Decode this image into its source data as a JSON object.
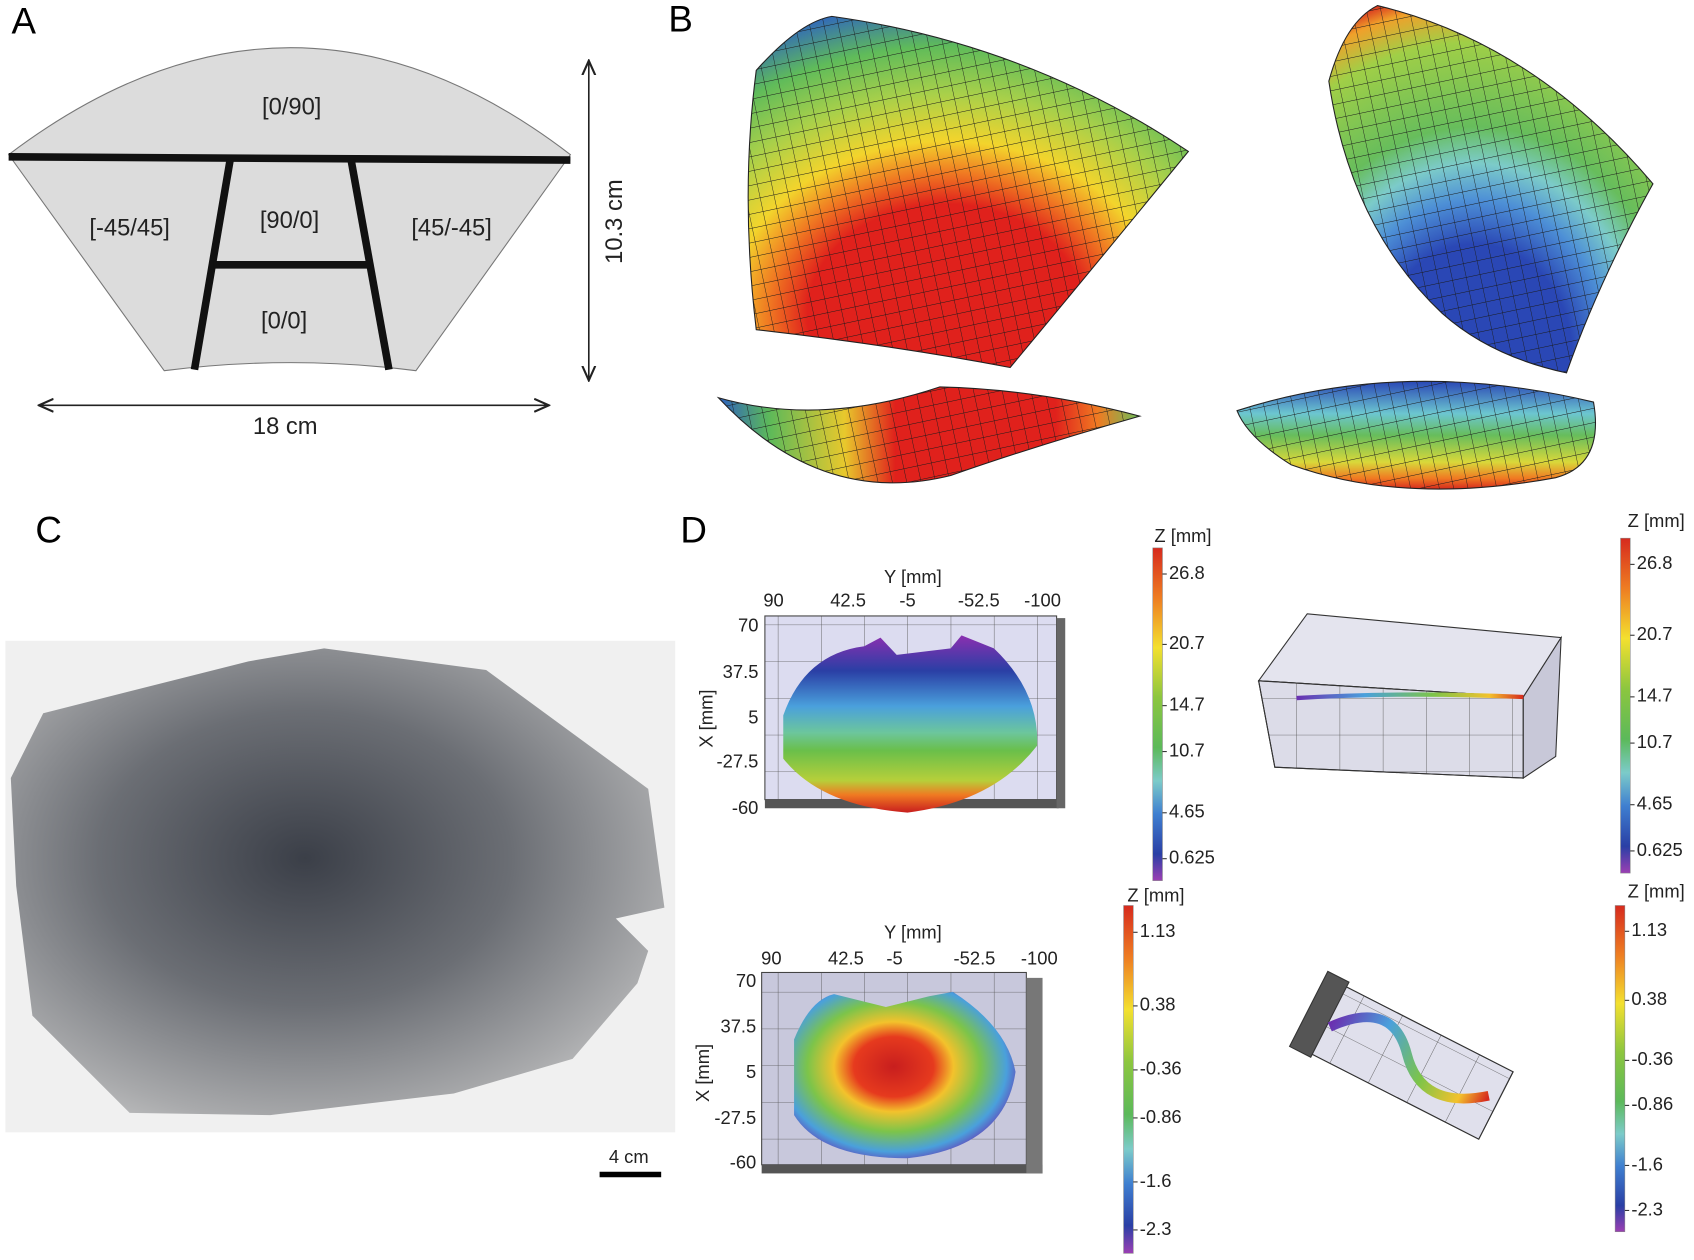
{
  "panels": {
    "a": {
      "label": "A",
      "regions": [
        "[0/90]",
        "[-45/45]",
        "[90/0]",
        "[45/-45]",
        "[0/0]"
      ],
      "height": "10.3 cm",
      "width": "18 cm"
    },
    "b": {
      "label": "B"
    },
    "c": {
      "label": "C",
      "scale_bar": "4 cm"
    },
    "d": {
      "label": "D",
      "plots": [
        {
          "y_axis_title": "Y [mm]",
          "y_ticks": [
            90,
            42.5,
            -5,
            -52.5,
            -100
          ],
          "x_axis_title": "X [mm]",
          "x_ticks": [
            70,
            37.5,
            5,
            -27.5,
            -60
          ]
        },
        {
          "y_axis_title": "Y [mm]",
          "y_ticks": [
            90,
            42.5,
            -5,
            -52.5,
            -100
          ],
          "x_axis_title": "X [mm]",
          "x_ticks": [
            70,
            37.5,
            5,
            -27.5,
            -60
          ]
        }
      ],
      "colorbars": [
        {
          "title": "Z [mm]",
          "ticks": [
            26.8,
            20.7,
            14.7,
            10.7,
            4.65,
            0.625
          ]
        },
        {
          "title": "Z [mm]",
          "ticks": [
            26.8,
            20.7,
            14.7,
            10.7,
            4.65,
            0.625
          ]
        },
        {
          "title": "Z [mm]",
          "ticks": [
            1.13,
            0.38,
            -0.36,
            -0.86,
            -1.6,
            -2.3
          ]
        },
        {
          "title": "Z [mm]",
          "ticks": [
            1.13,
            0.38,
            -0.36,
            -0.86,
            -1.6,
            -2.3
          ]
        }
      ]
    }
  }
}
